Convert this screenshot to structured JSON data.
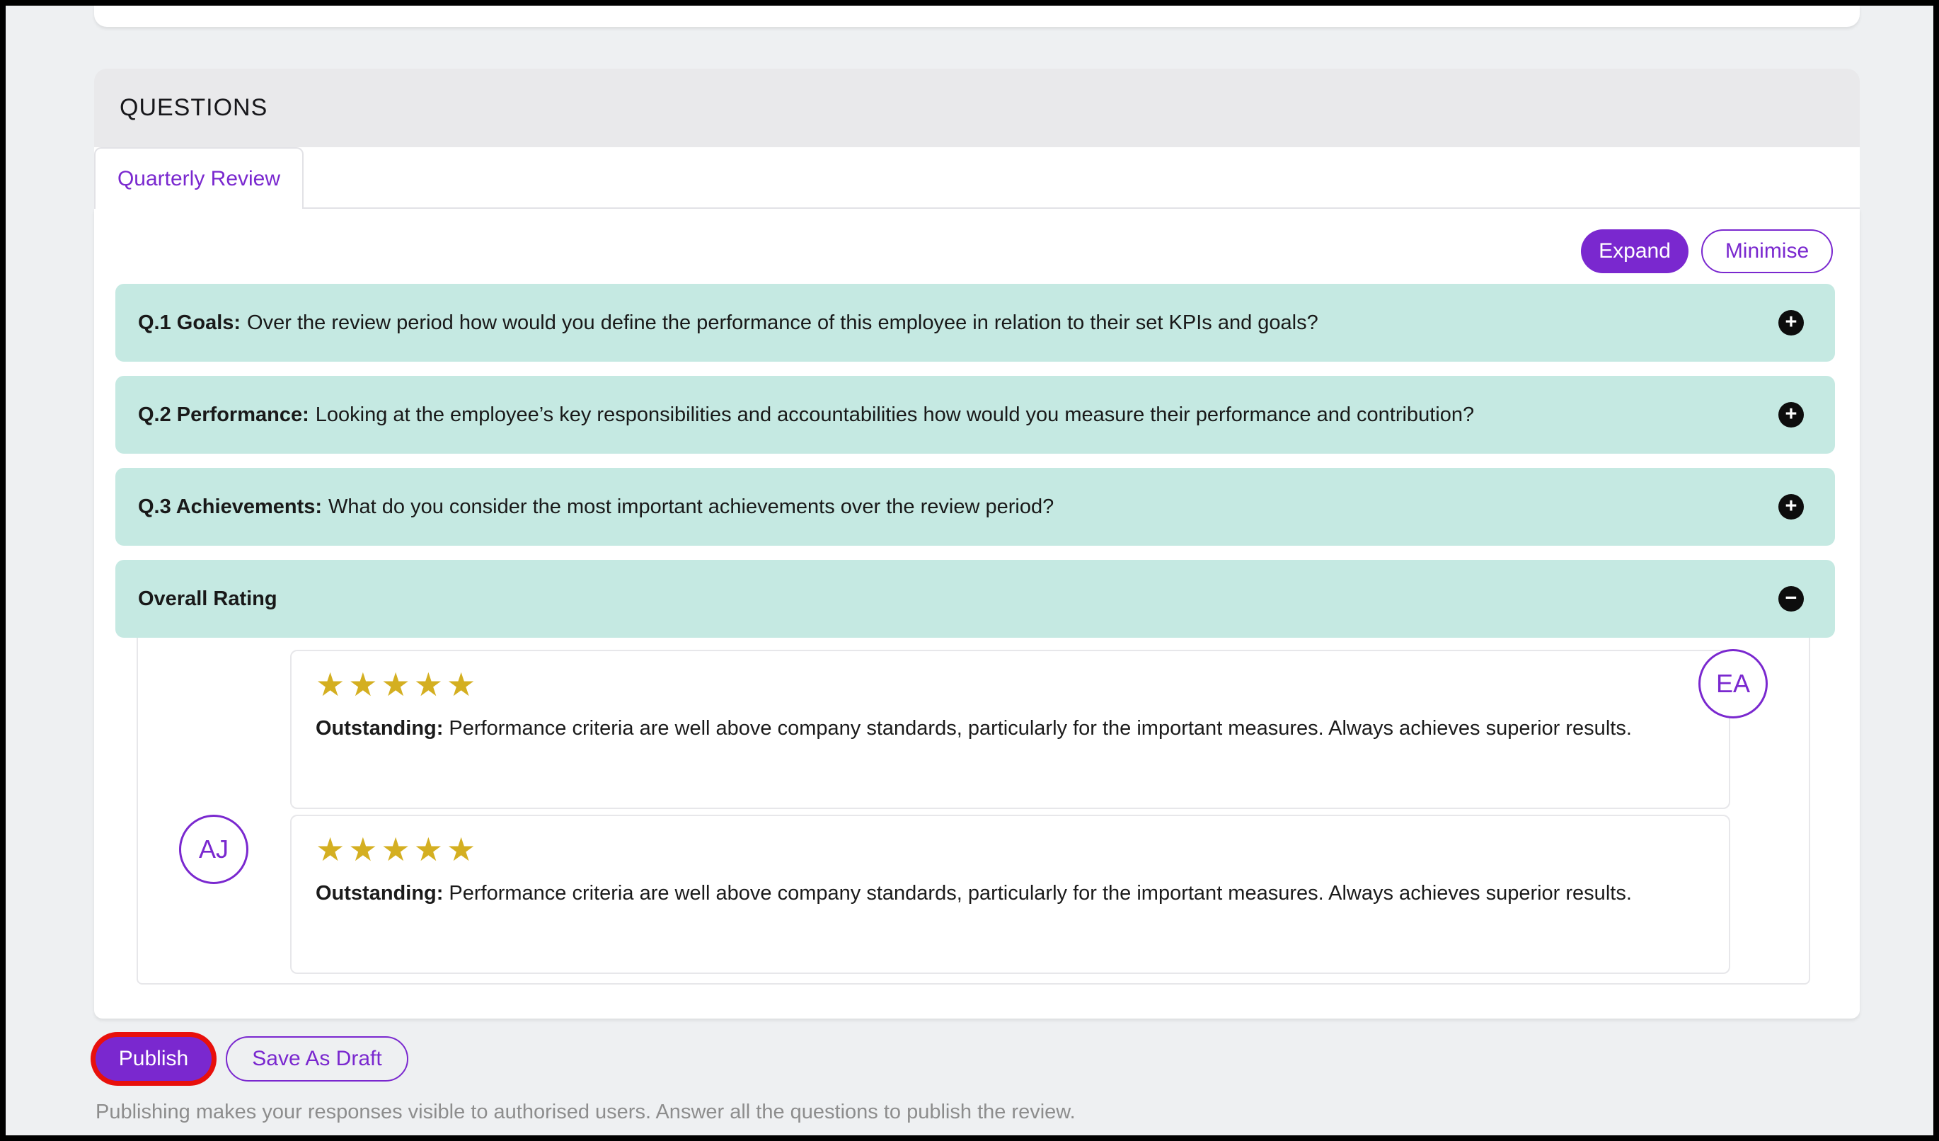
{
  "panel": {
    "title": "QUESTIONS"
  },
  "tabs": [
    {
      "label": "Quarterly Review",
      "active": true
    }
  ],
  "toolbar": {
    "expand_label": "Expand",
    "minimise_label": "Minimise"
  },
  "questions": [
    {
      "prefix": "Q.1 Goals:",
      "text": "Over the review period how would you define the performance of this employee in relation to their set KPIs and goals?",
      "state": "collapsed"
    },
    {
      "prefix": "Q.2 Performance:",
      "text": "Looking at the employee’s key responsibilities and accountabilities how would you measure their performance and contribution?",
      "state": "collapsed"
    },
    {
      "prefix": "Q.3 Achievements:",
      "text": "What do you consider the most important achievements over the review period?",
      "state": "collapsed"
    }
  ],
  "overall_rating": {
    "title": "Overall Rating",
    "state": "expanded",
    "responses": [
      {
        "avatar": "EA",
        "avatar_side": "right",
        "stars": 5,
        "label": "Outstanding:",
        "description": "Performance criteria are well above company standards, particularly for the important measures. Always achieves superior results."
      },
      {
        "avatar": "AJ",
        "avatar_side": "left",
        "stars": 5,
        "label": "Outstanding:",
        "description": "Performance criteria are well above company standards, particularly for the important measures. Always achieves superior results."
      }
    ]
  },
  "footer": {
    "publish_label": "Publish",
    "save_draft_label": "Save As Draft",
    "note": "Publishing makes your responses visible to authorised users. Answer all the questions to publish the review."
  },
  "icons": {
    "plus": "+",
    "minus": "−",
    "star": "★"
  },
  "colors": {
    "accent_purple": "#7a28cf",
    "row_teal": "#c5e9e2",
    "star_gold": "#d4af21",
    "publish_highlight_red": "#e8100c",
    "note_gray": "#8d8d8d"
  }
}
